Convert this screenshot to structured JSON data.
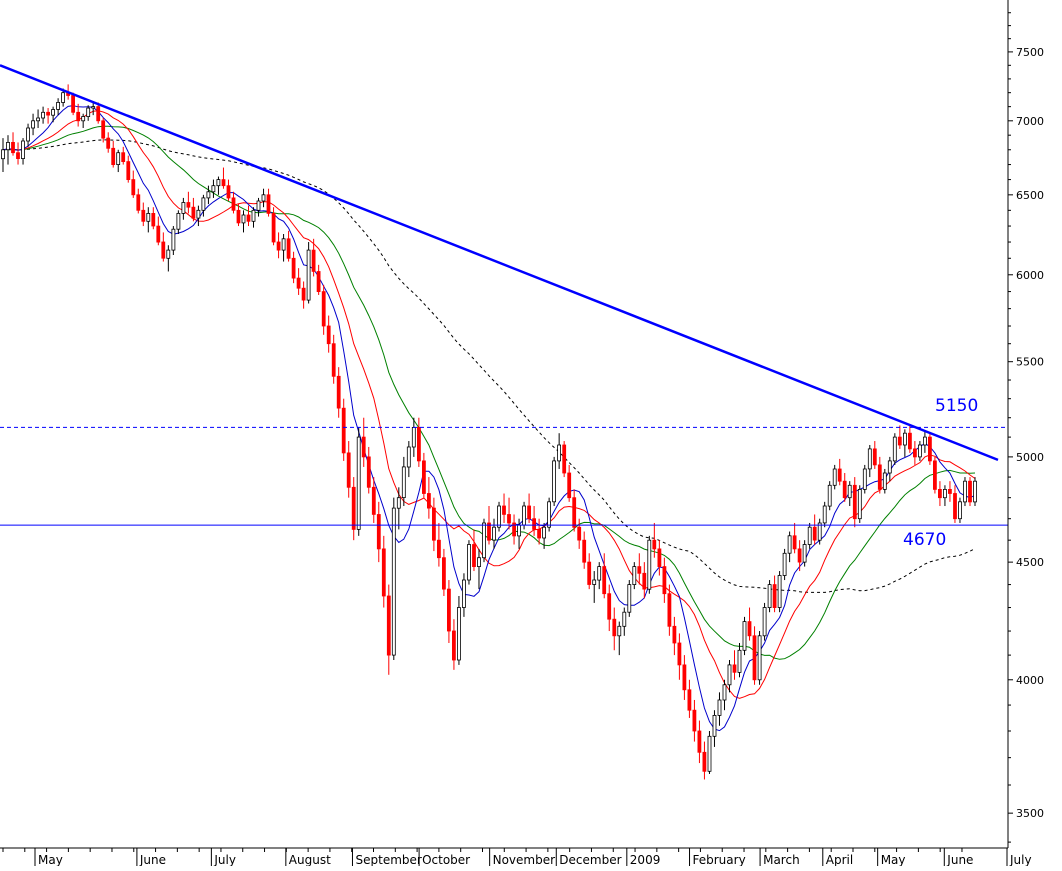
{
  "chart_data": {
    "type": "candlestick",
    "scale": "log",
    "ylim": [
      3380,
      7900
    ],
    "y_ticks": [
      "7500",
      "7000",
      "6500",
      "6000",
      "5500",
      "5000",
      "4500",
      "4000",
      "3500"
    ],
    "y_tick_values": [
      7500,
      7000,
      6500,
      6000,
      5500,
      5000,
      4500,
      4000,
      3500
    ],
    "x_months": [
      "May",
      "June",
      "July",
      "August",
      "September",
      "October",
      "November",
      "December",
      "2009",
      "February",
      "March",
      "April",
      "May",
      "June",
      "July"
    ],
    "grid": false,
    "levels": [
      {
        "label": "5150",
        "value": 5150,
        "style": "dashed",
        "color": "#0000ff"
      },
      {
        "label": "4670",
        "value": 4670,
        "style": "solid",
        "color": "#0000ff"
      }
    ],
    "trendline": {
      "from_value": 7400,
      "to_value": 4985,
      "color": "#0000ff"
    },
    "colors": {
      "up": "#000000",
      "down": "#ff0000",
      "ma_short": "#0000cc",
      "ma_mid": "#ff0000",
      "ma_long": "#008000",
      "ma_200": "#000000"
    },
    "candles": [
      [
        6740,
        6880,
        6650,
        6800
      ],
      [
        6800,
        6900,
        6700,
        6850
      ],
      [
        6850,
        6920,
        6760,
        6780
      ],
      [
        6780,
        6850,
        6700,
        6740
      ],
      [
        6740,
        6880,
        6700,
        6860
      ],
      [
        6860,
        6980,
        6820,
        6950
      ],
      [
        6950,
        7050,
        6900,
        7000
      ],
      [
        7000,
        7080,
        6950,
        7020
      ],
      [
        7020,
        7100,
        6980,
        7060
      ],
      [
        7060,
        7090,
        6980,
        7040
      ],
      [
        7040,
        7100,
        6990,
        7080
      ],
      [
        7080,
        7160,
        7040,
        7130
      ],
      [
        7130,
        7230,
        7100,
        7200
      ],
      [
        7200,
        7260,
        7150,
        7180
      ],
      [
        7180,
        7200,
        7040,
        7060
      ],
      [
        7060,
        7120,
        6960,
        7000
      ],
      [
        7000,
        7050,
        6950,
        7030
      ],
      [
        7030,
        7110,
        7000,
        7090
      ],
      [
        7090,
        7140,
        7040,
        7100
      ],
      [
        7100,
        7130,
        6980,
        7000
      ],
      [
        7000,
        7020,
        6850,
        6880
      ],
      [
        6880,
        6920,
        6780,
        6810
      ],
      [
        6810,
        6860,
        6680,
        6700
      ],
      [
        6700,
        6800,
        6650,
        6780
      ],
      [
        6780,
        6820,
        6700,
        6720
      ],
      [
        6720,
        6760,
        6580,
        6600
      ],
      [
        6600,
        6660,
        6480,
        6500
      ],
      [
        6500,
        6540,
        6380,
        6400
      ],
      [
        6400,
        6450,
        6300,
        6330
      ],
      [
        6330,
        6420,
        6260,
        6380
      ],
      [
        6380,
        6420,
        6280,
        6300
      ],
      [
        6300,
        6360,
        6180,
        6200
      ],
      [
        6200,
        6260,
        6080,
        6100
      ],
      [
        6100,
        6180,
        6020,
        6150
      ],
      [
        6150,
        6300,
        6120,
        6280
      ],
      [
        6280,
        6400,
        6250,
        6380
      ],
      [
        6380,
        6480,
        6340,
        6450
      ],
      [
        6450,
        6520,
        6380,
        6420
      ],
      [
        6420,
        6480,
        6330,
        6350
      ],
      [
        6350,
        6430,
        6300,
        6400
      ],
      [
        6400,
        6500,
        6360,
        6480
      ],
      [
        6480,
        6560,
        6440,
        6520
      ],
      [
        6520,
        6600,
        6480,
        6560
      ],
      [
        6560,
        6620,
        6500,
        6600
      ],
      [
        6600,
        6680,
        6540,
        6560
      ],
      [
        6560,
        6600,
        6460,
        6480
      ],
      [
        6480,
        6520,
        6380,
        6400
      ],
      [
        6400,
        6440,
        6300,
        6320
      ],
      [
        6320,
        6400,
        6260,
        6370
      ],
      [
        6370,
        6430,
        6300,
        6330
      ],
      [
        6330,
        6420,
        6290,
        6400
      ],
      [
        6400,
        6480,
        6360,
        6460
      ],
      [
        6460,
        6540,
        6420,
        6500
      ],
      [
        6500,
        6540,
        6360,
        6380
      ],
      [
        6380,
        6420,
        6180,
        6200
      ],
      [
        6200,
        6260,
        6100,
        6150
      ],
      [
        6150,
        6250,
        6080,
        6220
      ],
      [
        6220,
        6270,
        6080,
        6100
      ],
      [
        6100,
        6140,
        5950,
        5980
      ],
      [
        5980,
        6040,
        5880,
        5920
      ],
      [
        5920,
        5960,
        5800,
        5850
      ],
      [
        5850,
        6200,
        5830,
        6150
      ],
      [
        6150,
        6220,
        5990,
        6020
      ],
      [
        6020,
        6060,
        5880,
        5900
      ],
      [
        5900,
        5940,
        5650,
        5700
      ],
      [
        5700,
        5760,
        5550,
        5600
      ],
      [
        5600,
        5650,
        5380,
        5420
      ],
      [
        5420,
        5470,
        5200,
        5250
      ],
      [
        5250,
        5300,
        4980,
        5020
      ],
      [
        5020,
        5080,
        4800,
        4850
      ],
      [
        4850,
        4900,
        4600,
        4650
      ],
      [
        4650,
        5150,
        4620,
        5100
      ],
      [
        5100,
        5200,
        4950,
        5000
      ],
      [
        5000,
        5050,
        4820,
        4850
      ],
      [
        4850,
        4900,
        4680,
        4720
      ],
      [
        4720,
        4780,
        4500,
        4560
      ],
      [
        4560,
        4620,
        4300,
        4350
      ],
      [
        4350,
        4400,
        4020,
        4100
      ],
      [
        4100,
        4800,
        4080,
        4750
      ],
      [
        4750,
        4850,
        4650,
        4800
      ],
      [
        4800,
        5000,
        4760,
        4950
      ],
      [
        4950,
        5080,
        4900,
        5050
      ],
      [
        5050,
        5200,
        5000,
        5150
      ],
      [
        5150,
        5200,
        4950,
        4980
      ],
      [
        4980,
        5020,
        4800,
        4820
      ],
      [
        4820,
        4900,
        4700,
        4750
      ],
      [
        4750,
        4800,
        4550,
        4600
      ],
      [
        4600,
        4680,
        4480,
        4520
      ],
      [
        4520,
        4560,
        4350,
        4380
      ],
      [
        4380,
        4420,
        4150,
        4200
      ],
      [
        4200,
        4250,
        4040,
        4080
      ],
      [
        4080,
        4350,
        4060,
        4300
      ],
      [
        4300,
        4450,
        4260,
        4420
      ],
      [
        4420,
        4600,
        4400,
        4580
      ],
      [
        4580,
        4650,
        4460,
        4480
      ],
      [
        4480,
        4560,
        4380,
        4520
      ],
      [
        4520,
        4700,
        4500,
        4680
      ],
      [
        4680,
        4760,
        4580,
        4600
      ],
      [
        4600,
        4700,
        4560,
        4660
      ],
      [
        4660,
        4780,
        4640,
        4760
      ],
      [
        4760,
        4820,
        4680,
        4720
      ],
      [
        4720,
        4800,
        4650,
        4680
      ],
      [
        4680,
        4720,
        4580,
        4620
      ],
      [
        4620,
        4700,
        4560,
        4670
      ],
      [
        4670,
        4780,
        4650,
        4760
      ],
      [
        4760,
        4820,
        4680,
        4700
      ],
      [
        4700,
        4760,
        4620,
        4650
      ],
      [
        4650,
        4700,
        4580,
        4610
      ],
      [
        4610,
        4680,
        4560,
        4660
      ],
      [
        4660,
        4800,
        4640,
        4780
      ],
      [
        4780,
        5000,
        4760,
        4980
      ],
      [
        4980,
        5120,
        4940,
        5060
      ],
      [
        5060,
        5080,
        4900,
        4920
      ],
      [
        4920,
        4960,
        4780,
        4800
      ],
      [
        4800,
        4840,
        4640,
        4660
      ],
      [
        4660,
        4700,
        4560,
        4600
      ],
      [
        4600,
        4640,
        4470,
        4500
      ],
      [
        4500,
        4540,
        4380,
        4400
      ],
      [
        4400,
        4460,
        4320,
        4420
      ],
      [
        4420,
        4500,
        4380,
        4480
      ],
      [
        4480,
        4540,
        4340,
        4360
      ],
      [
        4360,
        4400,
        4200,
        4250
      ],
      [
        4250,
        4300,
        4120,
        4180
      ],
      [
        4180,
        4240,
        4100,
        4220
      ],
      [
        4220,
        4300,
        4180,
        4280
      ],
      [
        4280,
        4420,
        4260,
        4400
      ],
      [
        4400,
        4500,
        4380,
        4480
      ],
      [
        4480,
        4540,
        4400,
        4450
      ],
      [
        4450,
        4500,
        4340,
        4380
      ],
      [
        4380,
        4620,
        4360,
        4600
      ],
      [
        4600,
        4680,
        4520,
        4560
      ],
      [
        4560,
        4600,
        4440,
        4480
      ],
      [
        4480,
        4520,
        4320,
        4360
      ],
      [
        4360,
        4400,
        4180,
        4220
      ],
      [
        4220,
        4260,
        4100,
        4150
      ],
      [
        4150,
        4190,
        4000,
        4060
      ],
      [
        4060,
        4100,
        3920,
        3960
      ],
      [
        3960,
        4000,
        3850,
        3880
      ],
      [
        3880,
        3920,
        3760,
        3800
      ],
      [
        3800,
        3840,
        3680,
        3720
      ],
      [
        3720,
        3760,
        3620,
        3650
      ],
      [
        3650,
        3800,
        3640,
        3780
      ],
      [
        3780,
        3880,
        3740,
        3860
      ],
      [
        3860,
        3950,
        3820,
        3920
      ],
      [
        3920,
        4000,
        3880,
        3980
      ],
      [
        3980,
        4080,
        3950,
        4060
      ],
      [
        4060,
        4120,
        4000,
        4030
      ],
      [
        4030,
        4150,
        4010,
        4120
      ],
      [
        4120,
        4260,
        4100,
        4240
      ],
      [
        4240,
        4300,
        4160,
        4180
      ],
      [
        4180,
        4220,
        3980,
        4000
      ],
      [
        4000,
        4200,
        3980,
        4180
      ],
      [
        4180,
        4320,
        4160,
        4300
      ],
      [
        4300,
        4420,
        4280,
        4400
      ],
      [
        4400,
        4440,
        4280,
        4300
      ],
      [
        4300,
        4460,
        4280,
        4440
      ],
      [
        4440,
        4560,
        4420,
        4540
      ],
      [
        4540,
        4640,
        4500,
        4620
      ],
      [
        4620,
        4680,
        4540,
        4560
      ],
      [
        4560,
        4600,
        4460,
        4500
      ],
      [
        4500,
        4600,
        4480,
        4580
      ],
      [
        4580,
        4680,
        4560,
        4660
      ],
      [
        4660,
        4720,
        4580,
        4600
      ],
      [
        4600,
        4700,
        4580,
        4680
      ],
      [
        4680,
        4780,
        4660,
        4760
      ],
      [
        4760,
        4880,
        4740,
        4860
      ],
      [
        4860,
        4960,
        4840,
        4940
      ],
      [
        4940,
        4990,
        4860,
        4880
      ],
      [
        4880,
        4920,
        4780,
        4800
      ],
      [
        4800,
        4880,
        4760,
        4860
      ],
      [
        4860,
        4900,
        4660,
        4700
      ],
      [
        4700,
        4860,
        4680,
        4840
      ],
      [
        4840,
        4960,
        4820,
        4940
      ],
      [
        4940,
        5060,
        4900,
        5040
      ],
      [
        5040,
        5080,
        4940,
        4960
      ],
      [
        4960,
        5000,
        4820,
        4840
      ],
      [
        4840,
        4940,
        4820,
        4920
      ],
      [
        4920,
        5000,
        4880,
        4980
      ],
      [
        4980,
        5120,
        4960,
        5100
      ],
      [
        5100,
        5160,
        5040,
        5060
      ],
      [
        5060,
        5140,
        5000,
        5120
      ],
      [
        5120,
        5160,
        5020,
        5040
      ],
      [
        5040,
        5080,
        4960,
        5000
      ],
      [
        5000,
        5080,
        4980,
        5060
      ],
      [
        5060,
        5130,
        5020,
        5100
      ],
      [
        5100,
        5120,
        4960,
        4980
      ],
      [
        4980,
        5000,
        4820,
        4840
      ],
      [
        4840,
        4880,
        4760,
        4800
      ],
      [
        4800,
        4860,
        4760,
        4840
      ],
      [
        4840,
        4880,
        4780,
        4820
      ],
      [
        4820,
        4860,
        4680,
        4700
      ],
      [
        4700,
        4800,
        4680,
        4780
      ],
      [
        4780,
        4900,
        4760,
        4880
      ],
      [
        4880,
        4900,
        4760,
        4780
      ],
      [
        4780,
        4900,
        4760,
        4880
      ]
    ]
  }
}
